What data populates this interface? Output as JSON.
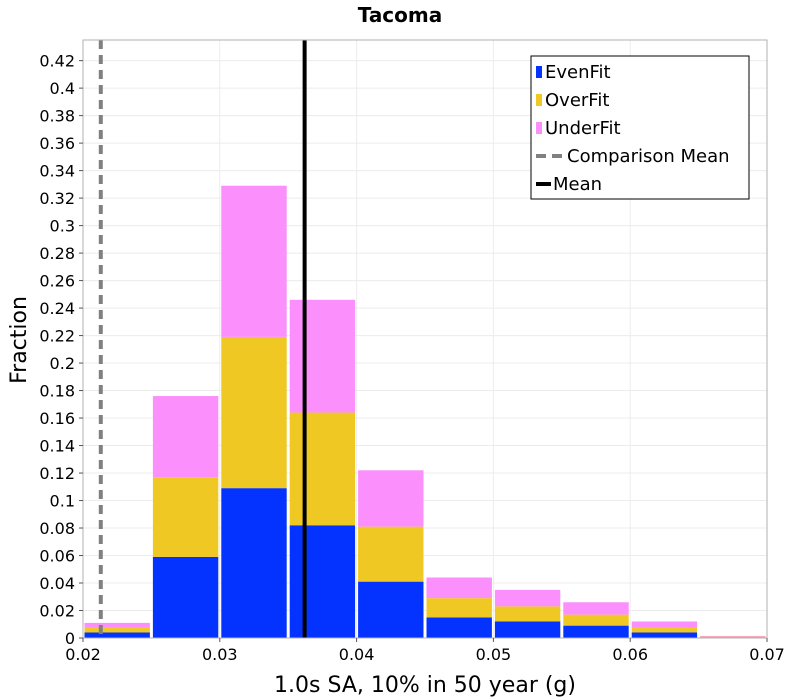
{
  "chart_data": {
    "type": "bar",
    "title": "Tacoma",
    "xlabel": "1.0s SA, 10% in 50 year (g)",
    "ylabel": "Fraction",
    "xlim": [
      0.02,
      0.07
    ],
    "ylim": [
      0,
      0.435
    ],
    "x_ticks": [
      "0.02",
      "0.03",
      "0.04",
      "0.05",
      "0.06",
      "0.07"
    ],
    "y_ticks": [
      "0",
      "0.02",
      "0.04",
      "0.06",
      "0.08",
      "0.1",
      "0.12",
      "0.14",
      "0.16",
      "0.18",
      "0.2",
      "0.22",
      "0.24",
      "0.26",
      "0.28",
      "0.3",
      "0.32",
      "0.34",
      "0.36",
      "0.38",
      "0.4",
      "0.42"
    ],
    "grid": true,
    "legend_position": "top-right",
    "bins": [
      {
        "x0": 0.02,
        "x1": 0.025
      },
      {
        "x0": 0.025,
        "x1": 0.03
      },
      {
        "x0": 0.03,
        "x1": 0.035
      },
      {
        "x0": 0.035,
        "x1": 0.04
      },
      {
        "x0": 0.04,
        "x1": 0.045
      },
      {
        "x0": 0.045,
        "x1": 0.05
      },
      {
        "x0": 0.05,
        "x1": 0.055
      },
      {
        "x0": 0.055,
        "x1": 0.06
      },
      {
        "x0": 0.06,
        "x1": 0.065
      },
      {
        "x0": 0.065,
        "x1": 0.07
      }
    ],
    "stacked": true,
    "series": [
      {
        "name": "EvenFit",
        "color": "#0433ff",
        "values": [
          0.004,
          0.059,
          0.109,
          0.082,
          0.041,
          0.015,
          0.012,
          0.009,
          0.004,
          0.0005
        ]
      },
      {
        "name": "OverFit",
        "color": "#f0c824",
        "values": [
          0.004,
          0.058,
          0.11,
          0.082,
          0.04,
          0.014,
          0.011,
          0.008,
          0.004,
          0.0005
        ]
      },
      {
        "name": "UnderFit",
        "color": "#fb8ffb",
        "values": [
          0.003,
          0.059,
          0.11,
          0.082,
          0.041,
          0.015,
          0.012,
          0.009,
          0.004,
          0.0005
        ]
      }
    ],
    "lines": [
      {
        "name": "Comparison Mean",
        "x": 0.0213,
        "color": "#808080",
        "style": "dashed"
      },
      {
        "name": "Mean",
        "x": 0.0362,
        "color": "#000000",
        "style": "solid"
      }
    ]
  }
}
